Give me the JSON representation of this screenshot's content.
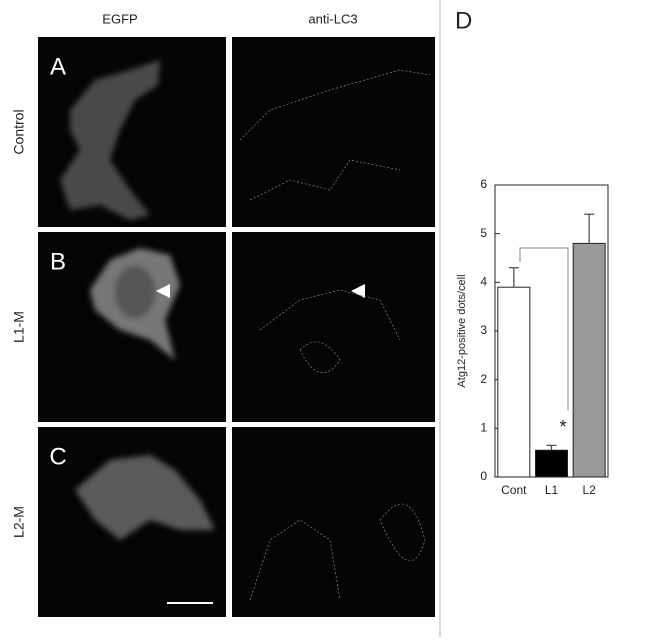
{
  "columns": [
    "EGFP",
    "anti-LC3"
  ],
  "rows": [
    {
      "letter": "A",
      "label": "Control"
    },
    {
      "letter": "B",
      "label": "L1-M"
    },
    {
      "letter": "C",
      "label": "L2-M"
    }
  ],
  "chart_data": {
    "type": "bar",
    "panel": "D",
    "ylabel": "Atg12-positive dots/cell",
    "categories": [
      "Cont",
      "L1",
      "L2"
    ],
    "values": [
      3.9,
      0.55,
      4.8
    ],
    "errors": [
      0.4,
      0.1,
      0.6
    ],
    "colors": [
      "#ffffff",
      "#000000",
      "#999999"
    ],
    "ylim": [
      0,
      6
    ],
    "yticks": [
      0,
      1,
      2,
      3,
      4,
      5,
      6
    ],
    "annotation": "*"
  }
}
